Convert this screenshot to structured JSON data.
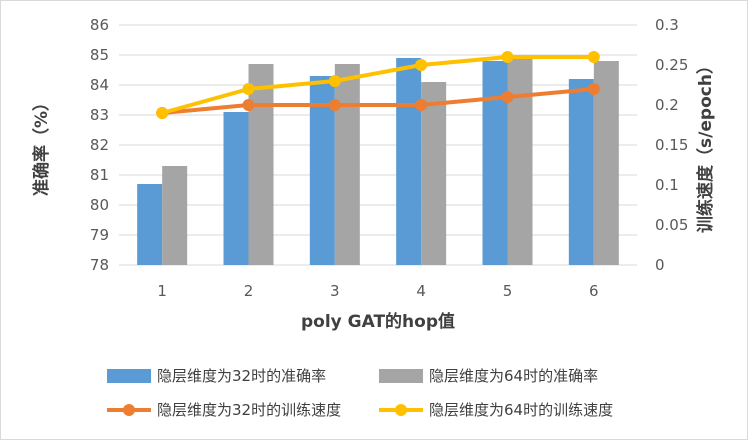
{
  "chart_data": {
    "type": "bar+line",
    "title": "",
    "xlabel": "poly GAT的hop值",
    "ylabel_left": "准确率（%）",
    "ylabel_right": "训练速度（s/epoch）",
    "categories": [
      "1",
      "2",
      "3",
      "4",
      "5",
      "6"
    ],
    "ylim_left": [
      78,
      86
    ],
    "yticks_left": [
      "78",
      "79",
      "80",
      "81",
      "82",
      "83",
      "84",
      "85",
      "86"
    ],
    "ylim_right": [
      0,
      0.3
    ],
    "yticks_right": [
      "0",
      "0.05",
      "0.1",
      "0.15",
      "0.2",
      "0.25",
      "0.3"
    ],
    "grid": true,
    "legend_position": "bottom",
    "bar_series": [
      {
        "name": "隐层维度为32时的准确率",
        "values": [
          80.7,
          83.1,
          84.3,
          84.9,
          84.8,
          84.2
        ],
        "color": "#5b9bd5"
      },
      {
        "name": "隐层维度为64时的准确率",
        "values": [
          81.3,
          84.7,
          84.7,
          84.1,
          85.0,
          84.8
        ],
        "color": "#a5a5a5"
      }
    ],
    "line_series": [
      {
        "name": "隐层维度为32时的训练速度",
        "values": [
          0.19,
          0.2,
          0.2,
          0.2,
          0.21,
          0.22
        ],
        "color": "#ed7d31"
      },
      {
        "name": "隐层维度为64时的训练速度",
        "values": [
          0.19,
          0.22,
          0.23,
          0.25,
          0.26,
          0.26
        ],
        "color": "#ffc000"
      }
    ]
  }
}
